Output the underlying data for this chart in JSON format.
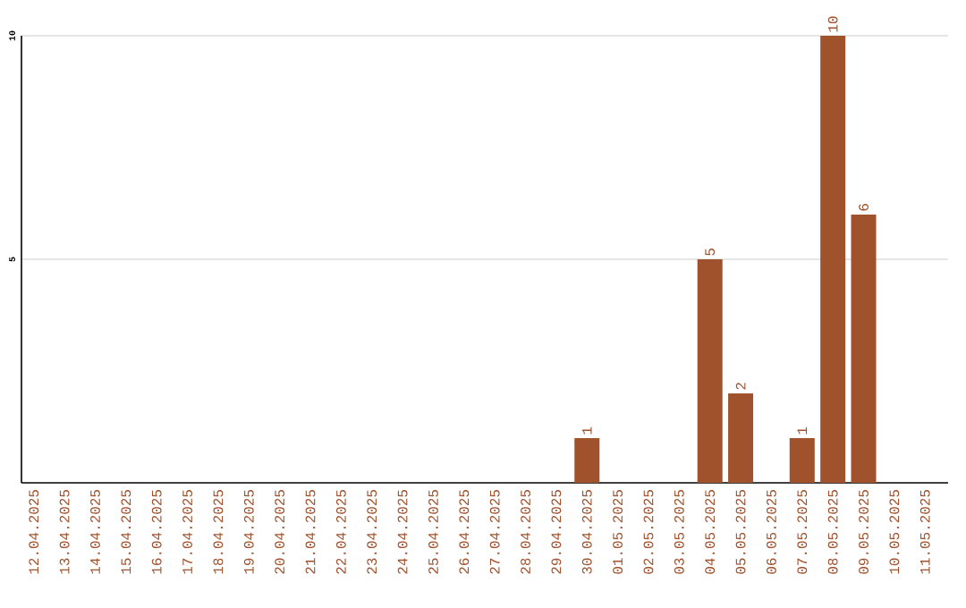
{
  "chart_data": {
    "type": "bar",
    "categories": [
      "12.04.2025",
      "13.04.2025",
      "14.04.2025",
      "15.04.2025",
      "16.04.2025",
      "17.04.2025",
      "18.04.2025",
      "19.04.2025",
      "20.04.2025",
      "21.04.2025",
      "22.04.2025",
      "23.04.2025",
      "24.04.2025",
      "25.04.2025",
      "26.04.2025",
      "27.04.2025",
      "28.04.2025",
      "29.04.2025",
      "30.04.2025",
      "01.05.2025",
      "02.05.2025",
      "03.05.2025",
      "04.05.2025",
      "05.05.2025",
      "06.05.2025",
      "07.05.2025",
      "08.05.2025",
      "09.05.2025",
      "10.05.2025",
      "11.05.2025"
    ],
    "values": [
      0,
      0,
      0,
      0,
      0,
      0,
      0,
      0,
      0,
      0,
      0,
      0,
      0,
      0,
      0,
      0,
      0,
      0,
      1,
      0,
      0,
      0,
      5,
      2,
      0,
      1,
      10,
      6,
      0,
      0
    ],
    "value_labels": [
      null,
      null,
      null,
      null,
      null,
      null,
      null,
      null,
      null,
      null,
      null,
      null,
      null,
      null,
      null,
      null,
      null,
      null,
      "1",
      null,
      null,
      null,
      "5",
      "2",
      null,
      "1",
      "10",
      "6",
      null,
      null
    ],
    "color": "#a0522d",
    "ylim": [
      0,
      10
    ],
    "yticks": [
      5,
      10
    ],
    "grid": "y"
  }
}
